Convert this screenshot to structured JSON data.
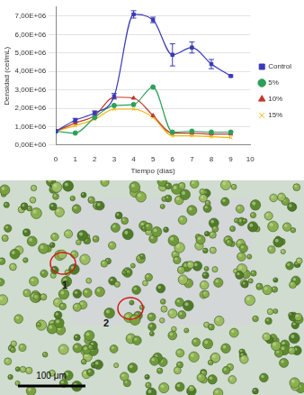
{
  "chart_data": {
    "type": "line",
    "x_label": "Tiempo (días)",
    "y_label": "Densidad (cel/mL)",
    "x": [
      0,
      1,
      2,
      3,
      4,
      5,
      6,
      7,
      8,
      9
    ],
    "xlim": [
      0,
      10
    ],
    "xticks": [
      0,
      1,
      2,
      3,
      4,
      5,
      6,
      7,
      8,
      9,
      10
    ],
    "ylim": [
      0,
      7500000
    ],
    "yticks": [
      {
        "value": 0,
        "label": "0,00E+00"
      },
      {
        "value": 1000000,
        "label": "1,00E+06"
      },
      {
        "value": 2000000,
        "label": "2,00E+06"
      },
      {
        "value": 3000000,
        "label": "3,00E+06"
      },
      {
        "value": 4000000,
        "label": "4,00E+06"
      },
      {
        "value": 5000000,
        "label": "5,00E+06"
      },
      {
        "value": 6000000,
        "label": "6,00E+06"
      },
      {
        "value": 7000000,
        "label": "7,00E+06"
      }
    ],
    "grid": true,
    "legend": "right",
    "series": [
      {
        "name": "Control",
        "color": "#3a3ab8",
        "marker": "square",
        "values": [
          750000,
          1350000,
          1750000,
          2650000,
          7100000,
          6800000,
          4900000,
          5300000,
          4400000,
          3750000
        ],
        "errors": [
          50000,
          100000,
          100000,
          150000,
          200000,
          150000,
          600000,
          300000,
          250000,
          50000
        ]
      },
      {
        "name": "5%",
        "color": "#2ca05a",
        "marker": "circle",
        "values": [
          750000,
          650000,
          1500000,
          2150000,
          2200000,
          3150000,
          700000,
          750000,
          700000,
          700000
        ]
      },
      {
        "name": "10%",
        "color": "#c0392b",
        "marker": "triangle",
        "values": [
          750000,
          1200000,
          1600000,
          2600000,
          2550000,
          1600000,
          650000,
          650000,
          600000,
          600000
        ]
      },
      {
        "name": "15%",
        "color": "#f0b400",
        "marker": "x",
        "values": [
          750000,
          1050000,
          1400000,
          1950000,
          1950000,
          1500000,
          500000,
          500000,
          450000,
          400000
        ]
      }
    ]
  },
  "micrograph": {
    "markers": [
      {
        "label": "1"
      },
      {
        "label": "2"
      }
    ],
    "scale_bar": "100 μm"
  }
}
